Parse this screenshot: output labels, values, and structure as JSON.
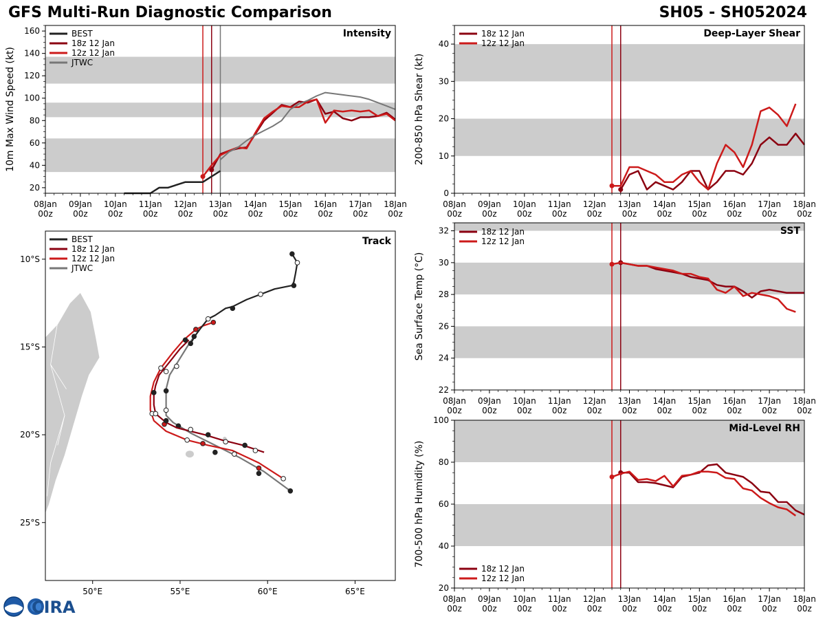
{
  "header": {
    "title": "GFS Multi-Run Diagnostic Comparison",
    "storm_id": "SH05 - SH052024"
  },
  "logo": {
    "text": "CIRA",
    "icon": "noaa-logo-icon"
  },
  "colors": {
    "best": "#222222",
    "run18": "#8b0010",
    "run12": "#cc1a1a",
    "jtwc": "#777777",
    "band": "#cccccc"
  },
  "time_axis": {
    "ticks": [
      "08Jan 00z",
      "09Jan 00z",
      "10Jan 00z",
      "11Jan 00z",
      "12Jan 00z",
      "13Jan 00z",
      "14Jan 00z",
      "15Jan 00z",
      "16Jan 00z",
      "17Jan 00z",
      "18Jan 00z"
    ],
    "xlim": [
      0,
      240
    ],
    "init_markers": [
      {
        "name": "12z",
        "value": 108
      },
      {
        "name": "18z",
        "value": 114
      },
      {
        "name": "jtwc",
        "value": 120
      }
    ]
  },
  "chart_data": [
    {
      "id": "intensity",
      "type": "line",
      "title": "Intensity",
      "xlabel": "",
      "ylabel": "10m Max Wind Speed (kt)",
      "ylim": [
        15,
        165
      ],
      "yticks": [
        20,
        40,
        60,
        80,
        100,
        120,
        140,
        160
      ],
      "bands": [
        [
          34,
          64
        ],
        [
          83,
          96
        ],
        [
          113,
          137
        ]
      ],
      "legend": [
        "BEST",
        "18z 12 Jan",
        "12z 12 Jan",
        "JTWC"
      ],
      "series": [
        {
          "name": "BEST",
          "x": [
            54,
            60,
            66,
            72,
            78,
            84,
            96,
            102,
            108,
            114,
            120
          ],
          "y": [
            15,
            15,
            15,
            15,
            20,
            20,
            25,
            25,
            25,
            30,
            35
          ]
        },
        {
          "name": "18z 12 Jan",
          "x": [
            114,
            120,
            126,
            132,
            138,
            144,
            150,
            156,
            162,
            168,
            174,
            180,
            186,
            192,
            198,
            204,
            210,
            216,
            222,
            228,
            234,
            240
          ],
          "y": [
            36,
            50,
            53,
            55,
            56,
            68,
            80,
            87,
            94,
            92,
            97,
            96,
            99,
            86,
            88,
            82,
            80,
            83,
            83,
            84,
            87,
            81
          ]
        },
        {
          "name": "12z 12 Jan",
          "x": [
            108,
            114,
            120,
            126,
            132,
            138,
            144,
            150,
            156,
            162,
            168,
            174,
            180,
            186,
            192,
            198,
            204,
            210,
            216,
            222,
            228,
            234,
            240
          ],
          "y": [
            30,
            40,
            49,
            53,
            56,
            55,
            69,
            82,
            88,
            93,
            92,
            92,
            97,
            99,
            78,
            89,
            88,
            89,
            88,
            89,
            84,
            86,
            80
          ]
        },
        {
          "name": "JTWC",
          "x": [
            120,
            126,
            132,
            138,
            144,
            150,
            156,
            162,
            168,
            174,
            180,
            186,
            192,
            198,
            204,
            210,
            216,
            222,
            228,
            234,
            240
          ],
          "y": [
            45,
            52,
            56,
            62,
            67,
            71,
            75,
            80,
            90,
            95,
            98,
            102,
            105,
            104,
            103,
            102,
            101,
            99,
            96,
            93,
            90
          ]
        }
      ]
    },
    {
      "id": "shear",
      "type": "line",
      "title": "Deep-Layer Shear",
      "xlabel": "",
      "ylabel": "200-850 hPa Shear (kt)",
      "ylim": [
        0,
        45
      ],
      "yticks": [
        0,
        10,
        20,
        30,
        40
      ],
      "bands": [
        [
          10,
          20
        ],
        [
          30,
          40
        ]
      ],
      "legend": [
        "18z 12 Jan",
        "12z 12 Jan"
      ],
      "series": [
        {
          "name": "18z 12 Jan",
          "x": [
            114,
            120,
            126,
            132,
            138,
            144,
            150,
            156,
            162,
            168,
            174,
            180,
            186,
            192,
            198,
            204,
            210,
            216,
            222,
            228,
            234,
            240
          ],
          "y": [
            1,
            5,
            6,
            1,
            3,
            2,
            1,
            3,
            6,
            6,
            1,
            3,
            6,
            6,
            5,
            8,
            13,
            15,
            13,
            13,
            16,
            13
          ]
        },
        {
          "name": "12z 12 Jan",
          "x": [
            108,
            114,
            120,
            126,
            132,
            138,
            144,
            150,
            156,
            162,
            168,
            174,
            180,
            186,
            192,
            198,
            204,
            210,
            216,
            222,
            228,
            234
          ],
          "y": [
            2,
            2,
            7,
            7,
            6,
            5,
            3,
            3,
            5,
            6,
            3,
            1,
            8,
            13,
            11,
            7,
            13,
            22,
            23,
            21,
            18,
            24
          ]
        }
      ]
    },
    {
      "id": "sst",
      "type": "line",
      "title": "SST",
      "xlabel": "",
      "ylabel": "Sea Surface Temp (°C)",
      "ylim": [
        22,
        32.5
      ],
      "yticks": [
        22,
        24,
        26,
        28,
        30,
        32
      ],
      "bands": [
        [
          24,
          26
        ],
        [
          28,
          30
        ],
        [
          32,
          32.5
        ]
      ],
      "legend": [
        "18z 12 Jan",
        "12z 12 Jan"
      ],
      "series": [
        {
          "name": "18z 12 Jan",
          "x": [
            114,
            120,
            126,
            132,
            138,
            144,
            150,
            156,
            162,
            168,
            174,
            180,
            186,
            192,
            198,
            204,
            210,
            216,
            222,
            228,
            234,
            240
          ],
          "y": [
            30.0,
            29.9,
            29.8,
            29.8,
            29.6,
            29.5,
            29.4,
            29.3,
            29.1,
            29.0,
            28.9,
            28.6,
            28.5,
            28.5,
            28.2,
            27.8,
            28.2,
            28.3,
            28.2,
            28.1,
            28.1,
            28.1
          ]
        },
        {
          "name": "12z 12 Jan",
          "x": [
            108,
            114,
            120,
            126,
            132,
            138,
            144,
            150,
            156,
            162,
            168,
            174,
            180,
            186,
            192,
            198,
            204,
            210,
            216,
            222,
            228,
            234
          ],
          "y": [
            29.9,
            30.0,
            29.9,
            29.8,
            29.8,
            29.7,
            29.6,
            29.5,
            29.3,
            29.3,
            29.1,
            29.0,
            28.3,
            28.1,
            28.5,
            27.9,
            28.1,
            28.0,
            27.9,
            27.7,
            27.1,
            26.9
          ]
        }
      ]
    },
    {
      "id": "rh",
      "type": "line",
      "title": "Mid-Level RH",
      "xlabel": "",
      "ylabel": "700-500 hPa Humidity (%)",
      "ylim": [
        20,
        100
      ],
      "yticks": [
        20,
        40,
        60,
        80,
        100
      ],
      "bands": [
        [
          40,
          60
        ],
        [
          80,
          100
        ]
      ],
      "legend": [
        "18z 12 Jan",
        "12z 12 Jan"
      ],
      "series": [
        {
          "name": "18z 12 Jan",
          "x": [
            114,
            120,
            126,
            132,
            138,
            144,
            150,
            156,
            162,
            168,
            174,
            180,
            186,
            192,
            198,
            204,
            210,
            216,
            222,
            228,
            234,
            240
          ],
          "y": [
            75,
            75,
            70.5,
            70.5,
            70,
            69,
            68,
            73,
            74,
            75,
            78.5,
            79,
            75,
            74,
            73,
            70,
            66,
            65.5,
            61,
            61,
            57,
            55
          ]
        },
        {
          "name": "12z 12 Jan",
          "x": [
            108,
            114,
            120,
            126,
            132,
            138,
            144,
            150,
            156,
            162,
            168,
            174,
            180,
            186,
            192,
            198,
            204,
            210,
            216,
            222,
            228,
            234
          ],
          "y": [
            73,
            74.5,
            75.5,
            71.5,
            72,
            71,
            73.5,
            68.5,
            73.5,
            74,
            75.5,
            75.5,
            75,
            72.5,
            72,
            67.5,
            66.5,
            63,
            60.5,
            58.5,
            57.5,
            54.5
          ]
        }
      ]
    },
    {
      "id": "track",
      "type": "scatter",
      "title": "Track",
      "xlabel": "",
      "ylabel": "",
      "xlim": [
        47.3,
        67.3
      ],
      "ylim": [
        -28.3,
        -8.4
      ],
      "xticks": [
        50,
        55,
        60,
        65
      ],
      "xtick_labels": [
        "50°E",
        "55°E",
        "60°E",
        "65°E"
      ],
      "yticks": [
        -10,
        -15,
        -20,
        -25
      ],
      "ytick_labels": [
        "10°S",
        "15°S",
        "20°S",
        "25°S"
      ],
      "legend": [
        "BEST",
        "18z 12 Jan",
        "12z 12 Jan",
        "JTWC"
      ],
      "series": [
        {
          "name": "BEST",
          "lon": [
            61.4,
            61.7,
            61.6,
            61.5,
            61.4,
            60.4,
            59.6,
            58.8,
            58.0,
            57.6,
            57.0,
            56.6,
            56.2,
            55.9,
            55.6
          ],
          "lat": [
            -9.7,
            -10.2,
            -10.8,
            -11.3,
            -11.5,
            -11.7,
            -12.0,
            -12.3,
            -12.7,
            -12.8,
            -13.2,
            -13.4,
            -13.9,
            -14.3,
            -14.8
          ],
          "markers": [
            {
              "lon": 61.4,
              "lat": -9.7,
              "filled": true
            },
            {
              "lon": 61.7,
              "lat": -10.2,
              "filled": false
            },
            {
              "lon": 61.5,
              "lat": -11.5,
              "filled": true
            },
            {
              "lon": 59.6,
              "lat": -12.0,
              "filled": false
            },
            {
              "lon": 58.0,
              "lat": -12.8,
              "filled": true
            },
            {
              "lon": 56.6,
              "lat": -13.4,
              "filled": false
            },
            {
              "lon": 55.6,
              "lat": -14.8,
              "filled": true
            }
          ]
        },
        {
          "name": "18z 12 Jan",
          "lon": [
            55.5,
            55.0,
            54.6,
            54.2,
            53.8,
            53.6,
            53.5,
            53.5,
            53.6,
            54.2,
            54.8,
            55.6,
            56.4,
            57.4,
            58.6,
            59.8
          ],
          "lat": [
            -14.6,
            -15.1,
            -15.6,
            -16.1,
            -16.6,
            -17.2,
            -17.7,
            -18.3,
            -18.8,
            -19.3,
            -19.6,
            -19.8,
            -20.0,
            -20.3,
            -20.6,
            -21.0
          ],
          "markers": [
            {
              "lon": 55.3,
              "lat": -14.6,
              "filled": true
            },
            {
              "lon": 54.2,
              "lat": -16.4,
              "filled": false
            },
            {
              "lon": 53.5,
              "lat": -17.6,
              "filled": true
            },
            {
              "lon": 53.6,
              "lat": -18.8,
              "filled": false
            },
            {
              "lon": 54.2,
              "lat": -19.2,
              "filled": true
            },
            {
              "lon": 55.6,
              "lat": -19.7,
              "filled": false
            },
            {
              "lon": 56.6,
              "lat": -20.0,
              "filled": true
            },
            {
              "lon": 57.6,
              "lat": -20.4,
              "filled": false
            },
            {
              "lon": 58.7,
              "lat": -20.6,
              "filled": true
            },
            {
              "lon": 59.3,
              "lat": -20.9,
              "filled": false
            }
          ]
        },
        {
          "name": "12z 12 Jan",
          "lon": [
            56.9,
            56.3,
            55.9,
            55.2,
            54.6,
            53.9,
            53.5,
            53.3,
            53.3,
            53.5,
            54.2,
            55.4,
            56.6,
            58.0,
            59.5,
            60.9
          ],
          "lat": [
            -13.6,
            -13.8,
            -14.0,
            -14.6,
            -15.3,
            -16.2,
            -17.0,
            -17.8,
            -18.6,
            -19.2,
            -19.8,
            -20.3,
            -20.6,
            -20.9,
            -21.6,
            -22.5
          ],
          "markers": [
            {
              "lon": 56.9,
              "lat": -13.6,
              "filled": true
            },
            {
              "lon": 55.9,
              "lat": -14.0,
              "filled": true
            },
            {
              "lon": 53.9,
              "lat": -16.2,
              "filled": false
            },
            {
              "lon": 53.4,
              "lat": -18.8,
              "filled": false
            },
            {
              "lon": 54.1,
              "lat": -19.4,
              "filled": true
            },
            {
              "lon": 55.4,
              "lat": -20.3,
              "filled": false
            },
            {
              "lon": 56.3,
              "lat": -20.5,
              "filled": true
            },
            {
              "lon": 58.1,
              "lat": -21.1,
              "filled": false
            },
            {
              "lon": 59.5,
              "lat": -21.9,
              "filled": true
            },
            {
              "lon": 60.9,
              "lat": -22.5,
              "filled": false
            }
          ]
        },
        {
          "name": "JTWC",
          "lon": [
            55.8,
            55.4,
            54.9,
            54.4,
            54.2,
            54.2,
            54.2,
            54.6,
            55.6,
            57.0,
            58.4,
            59.8,
            61.3
          ],
          "lat": [
            -14.4,
            -15.0,
            -15.8,
            -16.6,
            -17.4,
            -18.3,
            -18.9,
            -19.3,
            -19.9,
            -20.6,
            -21.3,
            -22.1,
            -23.2
          ],
          "markers": [
            {
              "lon": 55.8,
              "lat": -14.4,
              "filled": true
            },
            {
              "lon": 54.8,
              "lat": -16.1,
              "filled": false
            },
            {
              "lon": 54.2,
              "lat": -17.5,
              "filled": true
            },
            {
              "lon": 54.2,
              "lat": -18.6,
              "filled": false
            },
            {
              "lon": 54.9,
              "lat": -19.5,
              "filled": true
            },
            {
              "lon": 57.0,
              "lat": -21.0,
              "filled": true
            },
            {
              "lon": 59.5,
              "lat": -22.2,
              "filled": true
            },
            {
              "lon": 61.3,
              "lat": -23.2,
              "filled": true
            }
          ]
        }
      ]
    }
  ]
}
